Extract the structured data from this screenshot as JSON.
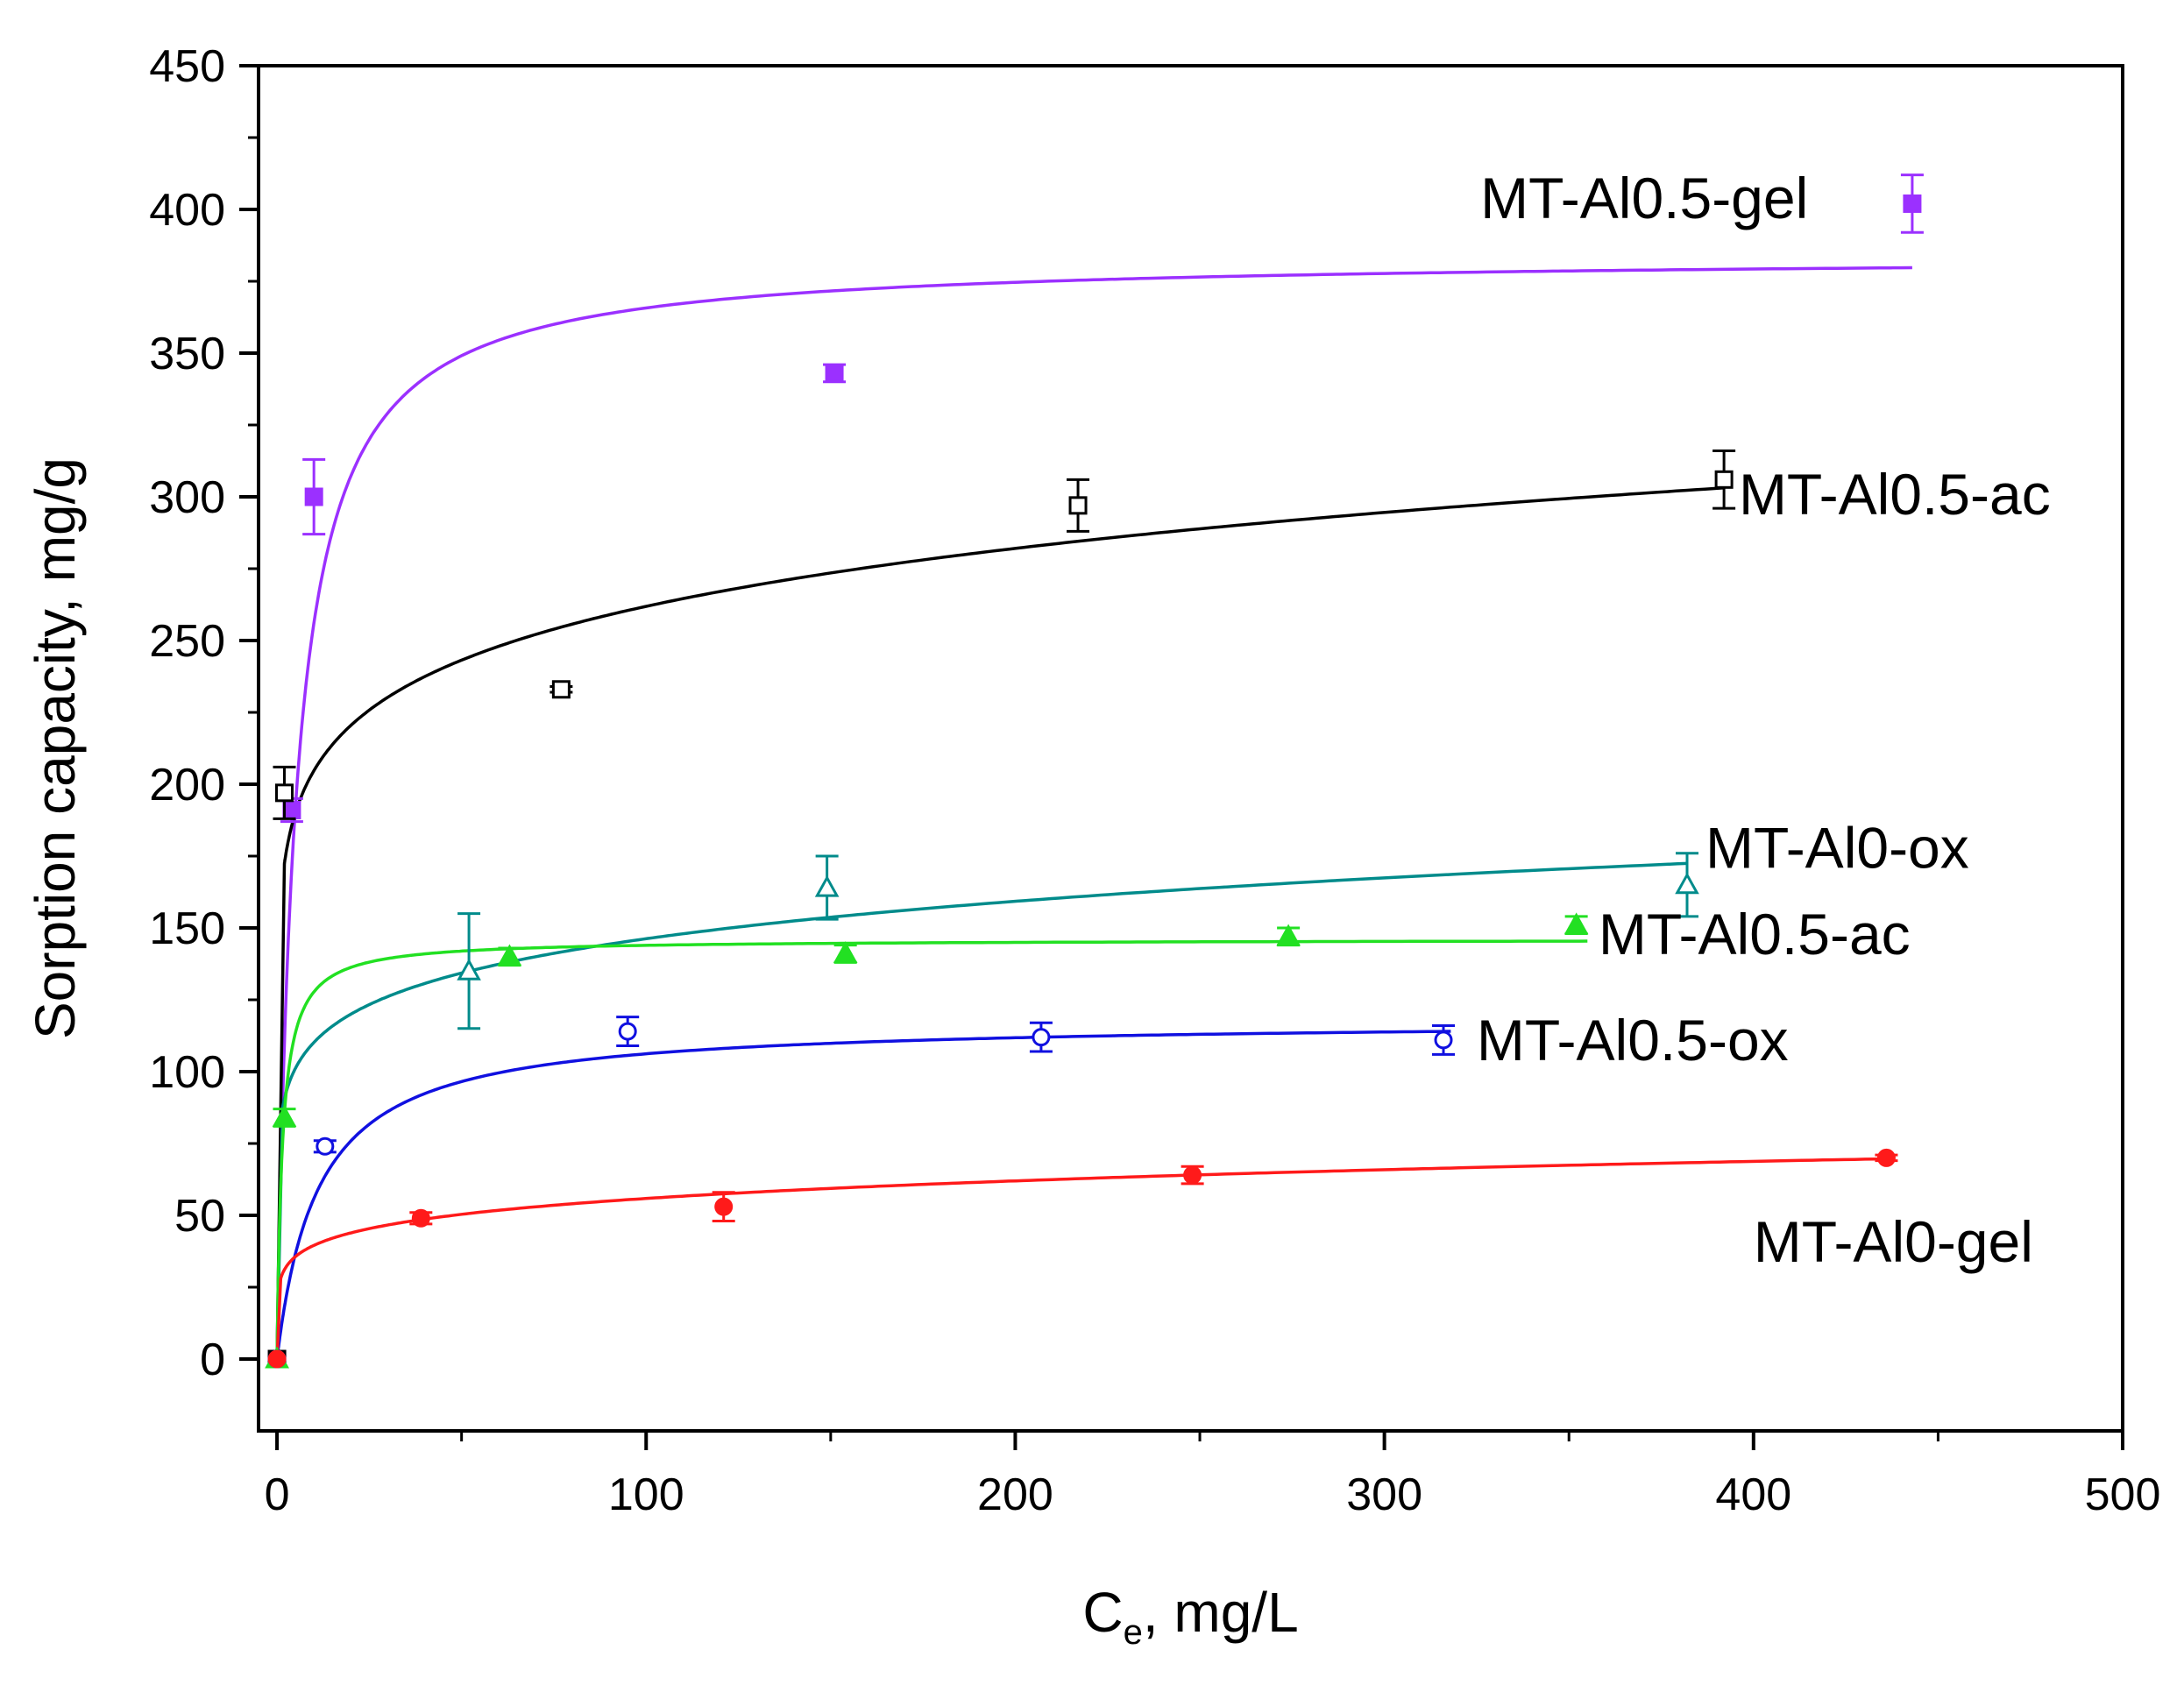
{
  "chart_data": {
    "type": "scatter",
    "title": "",
    "xlabel": {
      "main": "C",
      "sub": "e",
      "rest": ", mg/L"
    },
    "ylabel": "Sorption capacity, mg/g",
    "xlim": [
      -5,
      500
    ],
    "ylim": [
      -25,
      450
    ],
    "xticks": [
      0,
      100,
      200,
      300,
      400,
      500
    ],
    "yticks": [
      0,
      50,
      100,
      150,
      200,
      250,
      300,
      350,
      400,
      450
    ],
    "xtick_labels": [
      "0",
      "100",
      "200",
      "300",
      "400",
      "500"
    ],
    "ytick_labels": [
      "0",
      "50",
      "100",
      "150",
      "200",
      "250",
      "300",
      "350",
      "400",
      "450"
    ],
    "series": [
      {
        "name": "MT-Al0.5-gel",
        "color": "#9b30ff",
        "marker": "square-filled",
        "points": [
          {
            "x": 0,
            "y": 0,
            "err": 0
          },
          {
            "x": 4,
            "y": 191,
            "err": 4
          },
          {
            "x": 10,
            "y": 300,
            "err": 13
          },
          {
            "x": 151,
            "y": 343,
            "err": 3
          },
          {
            "x": 443,
            "y": 402,
            "err": 10
          }
        ],
        "fit": {
          "model": "langmuir",
          "qmax": 384,
          "K": 0.2,
          "xmax": 443
        },
        "label": "MT-Al0.5-gel",
        "label_pos": [
          326,
          403
        ]
      },
      {
        "name": "MT-Al0.5-ac (open)",
        "color": "#000000",
        "marker": "square-open",
        "points": [
          {
            "x": 0,
            "y": 0,
            "err": 0
          },
          {
            "x": 2,
            "y": 197,
            "err": 9
          },
          {
            "x": 77,
            "y": 233,
            "err": 1
          },
          {
            "x": 217,
            "y": 297,
            "err": 9
          },
          {
            "x": 392,
            "y": 306,
            "err": 10
          }
        ],
        "fit": {
          "model": "freundlich",
          "K": 160,
          "n": 0.107,
          "xmin": 2,
          "xmax": 392
        },
        "label": "MT-Al0.5-ac",
        "label_pos": [
          396,
          300
        ]
      },
      {
        "name": "MT-Al0-ox",
        "color": "#008b8b",
        "marker": "triangle-open",
        "points": [
          {
            "x": 0,
            "y": 0,
            "err": 0
          },
          {
            "x": 52,
            "y": 135,
            "err": 20
          },
          {
            "x": 149,
            "y": 164,
            "err": 11
          },
          {
            "x": 382,
            "y": 165,
            "err": 11
          }
        ],
        "fit": {
          "model": "freundlich",
          "K": 83,
          "n": 0.123,
          "xmin": 1.5,
          "xmax": 382
        },
        "label": "MT-Al0-ox",
        "label_pos": [
          387,
          177
        ]
      },
      {
        "name": "MT-Al0.5-ac (filled)",
        "color": "#22e022",
        "marker": "triangle-filled",
        "points": [
          {
            "x": 0,
            "y": 0,
            "err": 0
          },
          {
            "x": 2,
            "y": 84,
            "err": 3
          },
          {
            "x": 63,
            "y": 140,
            "err": 3
          },
          {
            "x": 154,
            "y": 141,
            "err": 3
          },
          {
            "x": 274,
            "y": 147,
            "err": 3
          },
          {
            "x": 352,
            "y": 151,
            "err": 3
          }
        ],
        "fit": {
          "model": "langmuir",
          "qmax": 146,
          "K": 0.7,
          "xmax": 355
        },
        "label": "MT-Al0.5-ac",
        "label_pos": [
          358,
          147
        ]
      },
      {
        "name": "MT-Al0.5-ox",
        "color": "#1010e0",
        "marker": "circle-open",
        "points": [
          {
            "x": 0,
            "y": 0,
            "err": 0
          },
          {
            "x": 13,
            "y": 74,
            "err": 2
          },
          {
            "x": 95,
            "y": 114,
            "err": 5
          },
          {
            "x": 207,
            "y": 112,
            "err": 5
          },
          {
            "x": 316,
            "y": 111,
            "err": 5
          }
        ],
        "fit": {
          "model": "langmuir",
          "qmax": 118,
          "K": 0.09,
          "xmax": 318
        },
        "label": "MT-Al0.5-ox",
        "label_pos": [
          325,
          110
        ]
      },
      {
        "name": "MT-Al0-gel",
        "color": "#ff1a1a",
        "marker": "circle-filled",
        "points": [
          {
            "x": 0,
            "y": 0,
            "err": 0
          },
          {
            "x": 39,
            "y": 49,
            "err": 2
          },
          {
            "x": 121,
            "y": 53,
            "err": 5
          },
          {
            "x": 248,
            "y": 64,
            "err": 3
          },
          {
            "x": 436,
            "y": 70,
            "err": 1
          }
        ],
        "fit": {
          "model": "freundlich",
          "K": 28,
          "n": 0.15,
          "xmin": 1,
          "xmax": 436
        },
        "label": "MT-Al0-gel",
        "label_pos": [
          400,
          40
        ]
      }
    ]
  }
}
